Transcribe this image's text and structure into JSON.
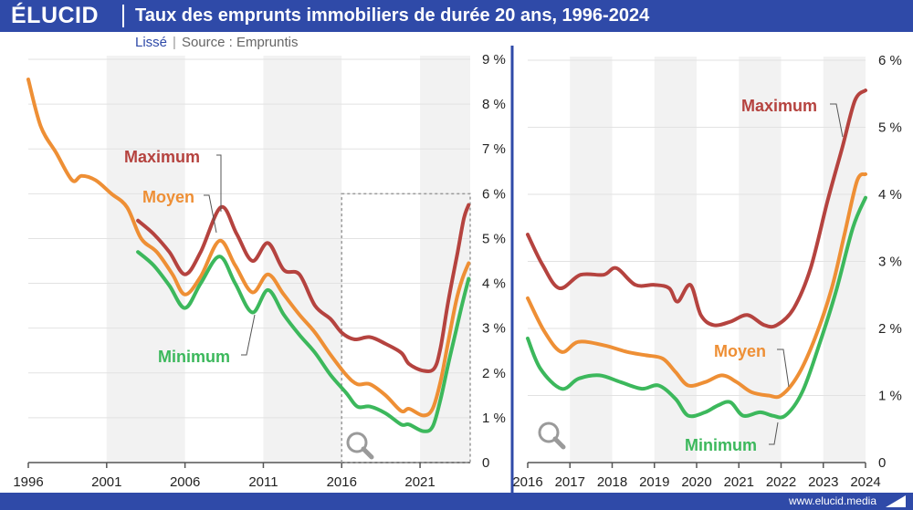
{
  "header": {
    "logo": "ÉLUCID",
    "title": "Taux des emprunts immobiliers de durée 20 ans, 1996-2024"
  },
  "subtitle": {
    "mode": "Lissé",
    "source": "Source : Empruntis"
  },
  "footer": {
    "url": "www.elucid.media"
  },
  "colors": {
    "max": "#b5433f",
    "moy": "#ee8f35",
    "min": "#3cb85c",
    "brand": "#2f4aa8"
  },
  "icons": [
    "magnifier-icon"
  ],
  "chart_data": [
    {
      "type": "line",
      "x_ticks": [
        "1996",
        "2001",
        "2006",
        "2011",
        "2016",
        "2021"
      ],
      "y_ticks": [
        "1 %",
        "2 %",
        "3 %",
        "4 %",
        "5 %",
        "6 %",
        "7 %",
        "8 %",
        "9 %"
      ],
      "y_zero": "0",
      "xlim": [
        1996,
        2024.2
      ],
      "ylim": [
        0,
        9
      ],
      "zoom_box": {
        "x": [
          2016,
          2024.2
        ],
        "y": [
          0,
          6
        ]
      },
      "series": [
        {
          "name": "Maximum",
          "x": [
            2003,
            2004,
            2005,
            2006,
            2007,
            2008.3,
            2009.3,
            2010.3,
            2011.3,
            2012.3,
            2013.3,
            2014.3,
            2015.3,
            2016,
            2016.8,
            2017.8,
            2018.8,
            2019.8,
            2020.3,
            2021.2,
            2021.9,
            2022.3,
            2022.8,
            2023.4,
            2023.8,
            2024.1
          ],
          "y": [
            5.4,
            5.1,
            4.7,
            4.2,
            4.7,
            5.7,
            5.1,
            4.5,
            4.9,
            4.3,
            4.2,
            3.5,
            3.2,
            2.9,
            2.75,
            2.8,
            2.65,
            2.45,
            2.2,
            2.05,
            2.1,
            2.55,
            3.6,
            4.7,
            5.45,
            5.75
          ]
        },
        {
          "name": "Moyen",
          "x": [
            1996,
            1996.8,
            1997.8,
            1998.8,
            1999.4,
            2000.3,
            2001.3,
            2002.3,
            2003.2,
            2004.2,
            2005.2,
            2006,
            2007,
            2008.2,
            2009.2,
            2010.3,
            2011.3,
            2012.3,
            2013.3,
            2014.3,
            2015.3,
            2016.3,
            2017,
            2017.8,
            2018.8,
            2019.8,
            2020.3,
            2021.2,
            2021.8,
            2022.3,
            2022.8,
            2023.3,
            2023.7,
            2024.1
          ],
          "y": [
            8.55,
            7.5,
            6.9,
            6.3,
            6.4,
            6.3,
            6.0,
            5.7,
            5.0,
            4.7,
            4.2,
            3.75,
            4.15,
            4.95,
            4.4,
            3.8,
            4.2,
            3.75,
            3.3,
            2.9,
            2.4,
            1.95,
            1.75,
            1.75,
            1.5,
            1.15,
            1.2,
            1.05,
            1.2,
            1.8,
            2.7,
            3.6,
            4.1,
            4.45
          ]
        },
        {
          "name": "Minimum",
          "x": [
            2003,
            2004,
            2005,
            2006,
            2007,
            2008.2,
            2009.2,
            2010.3,
            2011.3,
            2012.3,
            2013.3,
            2014.3,
            2015.3,
            2016.3,
            2017,
            2017.8,
            2018.8,
            2019.8,
            2020.3,
            2021.2,
            2021.8,
            2022.3,
            2022.8,
            2023.3,
            2023.7,
            2024.1
          ],
          "y": [
            4.7,
            4.4,
            3.95,
            3.45,
            4.0,
            4.6,
            4.0,
            3.35,
            3.85,
            3.3,
            2.85,
            2.45,
            1.95,
            1.55,
            1.25,
            1.25,
            1.1,
            0.85,
            0.85,
            0.7,
            0.8,
            1.4,
            2.2,
            2.95,
            3.55,
            4.1
          ]
        }
      ]
    },
    {
      "type": "line",
      "x_ticks": [
        "2016",
        "2017",
        "2018",
        "2019",
        "2020",
        "2021",
        "2022",
        "2023",
        "2024"
      ],
      "y_ticks": [
        "1 %",
        "2 %",
        "3 %",
        "4 %",
        "5 %",
        "6 %"
      ],
      "y_zero": "0",
      "xlim": [
        2016,
        2024
      ],
      "ylim": [
        0,
        6
      ],
      "series": [
        {
          "name": "Maximum",
          "x": [
            2016,
            2016.35,
            2016.75,
            2017.25,
            2017.8,
            2018.1,
            2018.55,
            2019,
            2019.35,
            2019.55,
            2019.85,
            2020.1,
            2020.4,
            2020.8,
            2021.2,
            2021.6,
            2021.9,
            2022.3,
            2022.7,
            2023.1,
            2023.45,
            2023.75,
            2024
          ],
          "y": [
            3.4,
            2.95,
            2.6,
            2.8,
            2.8,
            2.9,
            2.65,
            2.65,
            2.6,
            2.4,
            2.65,
            2.2,
            2.05,
            2.1,
            2.2,
            2.05,
            2.05,
            2.3,
            2.9,
            3.9,
            4.7,
            5.4,
            5.55
          ]
        },
        {
          "name": "Moyen",
          "x": [
            2016,
            2016.4,
            2016.8,
            2017.2,
            2017.8,
            2018.35,
            2018.8,
            2019.2,
            2019.5,
            2019.8,
            2020.2,
            2020.6,
            2020.95,
            2021.3,
            2021.7,
            2022.0,
            2022.4,
            2022.8,
            2023.2,
            2023.5,
            2023.8,
            2024
          ],
          "y": [
            2.45,
            1.95,
            1.65,
            1.8,
            1.75,
            1.65,
            1.6,
            1.55,
            1.35,
            1.15,
            1.2,
            1.3,
            1.2,
            1.05,
            1.0,
            1.0,
            1.3,
            1.85,
            2.6,
            3.4,
            4.2,
            4.3
          ]
        },
        {
          "name": "Minimum",
          "x": [
            2016,
            2016.3,
            2016.8,
            2017.2,
            2017.7,
            2018.2,
            2018.7,
            2019.1,
            2019.5,
            2019.8,
            2020.2,
            2020.5,
            2020.8,
            2021.1,
            2021.5,
            2021.8,
            2022.1,
            2022.5,
            2022.9,
            2023.3,
            2023.7,
            2024
          ],
          "y": [
            1.85,
            1.4,
            1.1,
            1.25,
            1.3,
            1.2,
            1.1,
            1.15,
            0.95,
            0.7,
            0.75,
            0.85,
            0.9,
            0.7,
            0.75,
            0.7,
            0.7,
            1.05,
            1.75,
            2.55,
            3.5,
            3.95
          ]
        }
      ]
    }
  ],
  "labels": {
    "left": {
      "maximum": "Maximum",
      "moyen": "Moyen",
      "minimum": "Minimum"
    },
    "right": {
      "maximum": "Maximum",
      "moyen": "Moyen",
      "minimum": "Minimum"
    }
  }
}
